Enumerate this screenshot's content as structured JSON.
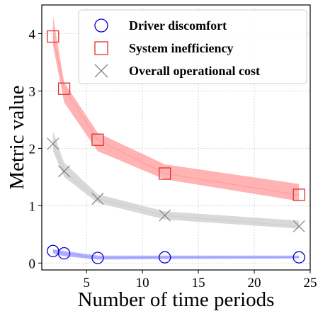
{
  "chart_data": {
    "type": "line",
    "xlabel": "Number of time periods",
    "ylabel": "Metric value",
    "xlim": [
      1,
      25
    ],
    "ylim": [
      -0.12,
      4.5
    ],
    "xticks": [
      5,
      10,
      15,
      20,
      25
    ],
    "yticks": [
      0,
      1,
      2,
      3,
      4
    ],
    "grid": true,
    "legend_position": "top-right",
    "x": [
      2,
      3,
      6,
      12,
      24
    ],
    "series": [
      {
        "name": "Driver discomfort",
        "marker": "circle",
        "color": "#0000cc",
        "band_color": "#9999ff",
        "values": [
          0.21,
          0.17,
          0.09,
          0.1,
          0.1
        ],
        "lower": [
          0.17,
          0.12,
          0.06,
          0.07,
          0.08
        ],
        "upper": [
          0.24,
          0.21,
          0.13,
          0.13,
          0.13
        ]
      },
      {
        "name": "System inefficiency",
        "marker": "square",
        "color": "#e03030",
        "band_color": "#ff9999",
        "values": [
          3.95,
          3.04,
          2.15,
          1.56,
          1.19
        ],
        "lower": [
          3.8,
          2.8,
          1.95,
          1.46,
          1.08
        ],
        "upper": [
          4.3,
          3.15,
          2.27,
          1.72,
          1.38
        ]
      },
      {
        "name": "Overall operational cost",
        "marker": "x",
        "color": "#888888",
        "band_color": "#cccccc",
        "values": [
          2.08,
          1.6,
          1.12,
          0.83,
          0.64
        ],
        "lower": [
          1.95,
          1.5,
          1.05,
          0.76,
          0.6
        ],
        "upper": [
          2.3,
          1.75,
          1.2,
          0.9,
          0.74
        ]
      }
    ]
  }
}
